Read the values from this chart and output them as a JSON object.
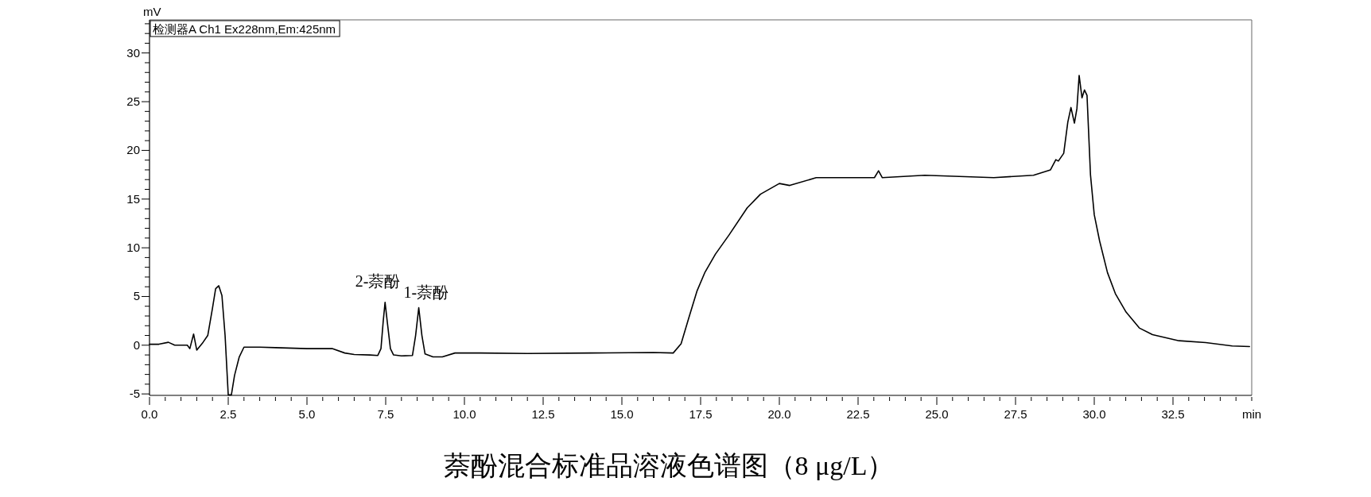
{
  "chart_data": {
    "type": "line",
    "title": "萘酚混合标准品溶液色谱图（8 μg/L）",
    "xlabel": "min",
    "ylabel": "mV",
    "annotations": [
      "检测器A Ch1 Ex228nm,Em:425nm",
      {
        "text": "2-萘酚",
        "x": 7.48,
        "y": 4.4
      },
      {
        "text": "1-萘酚",
        "x": 8.55,
        "y": 3.85
      }
    ],
    "xlim": [
      0,
      35
    ],
    "ylim": [
      -5.15,
      33.4
    ],
    "xticks": [
      {
        "value": 0,
        "label": "0.0"
      },
      {
        "value": 0.5,
        "label": null
      },
      {
        "value": 1,
        "label": null
      },
      {
        "value": 1.5,
        "label": null
      },
      {
        "value": 2,
        "label": null
      },
      {
        "value": 2.5,
        "label": "2.5"
      },
      {
        "value": 3,
        "label": null
      },
      {
        "value": 3.5,
        "label": null
      },
      {
        "value": 4,
        "label": null
      },
      {
        "value": 4.5,
        "label": null
      },
      {
        "value": 5,
        "label": "5.0"
      },
      {
        "value": 5.5,
        "label": null
      },
      {
        "value": 6,
        "label": null
      },
      {
        "value": 6.5,
        "label": null
      },
      {
        "value": 7,
        "label": null
      },
      {
        "value": 7.5,
        "label": "7.5"
      },
      {
        "value": 8,
        "label": null
      },
      {
        "value": 8.5,
        "label": null
      },
      {
        "value": 9,
        "label": null
      },
      {
        "value": 9.5,
        "label": null
      },
      {
        "value": 10,
        "label": "10.0"
      },
      {
        "value": 10.5,
        "label": null
      },
      {
        "value": 11,
        "label": null
      },
      {
        "value": 11.5,
        "label": null
      },
      {
        "value": 12,
        "label": null
      },
      {
        "value": 12.5,
        "label": "12.5"
      },
      {
        "value": 13,
        "label": null
      },
      {
        "value": 13.5,
        "label": null
      },
      {
        "value": 14,
        "label": null
      },
      {
        "value": 14.5,
        "label": null
      },
      {
        "value": 15,
        "label": "15.0"
      },
      {
        "value": 15.5,
        "label": null
      },
      {
        "value": 16,
        "label": null
      },
      {
        "value": 16.5,
        "label": null
      },
      {
        "value": 17,
        "label": null
      },
      {
        "value": 17.5,
        "label": "17.5"
      },
      {
        "value": 18,
        "label": null
      },
      {
        "value": 18.5,
        "label": null
      },
      {
        "value": 19,
        "label": null
      },
      {
        "value": 19.5,
        "label": null
      },
      {
        "value": 20,
        "label": "20.0"
      },
      {
        "value": 20.5,
        "label": null
      },
      {
        "value": 21,
        "label": null
      },
      {
        "value": 21.5,
        "label": null
      },
      {
        "value": 22,
        "label": null
      },
      {
        "value": 22.5,
        "label": "22.5"
      },
      {
        "value": 23,
        "label": null
      },
      {
        "value": 23.5,
        "label": null
      },
      {
        "value": 24,
        "label": null
      },
      {
        "value": 24.5,
        "label": null
      },
      {
        "value": 25,
        "label": "25.0"
      },
      {
        "value": 25.5,
        "label": null
      },
      {
        "value": 26,
        "label": null
      },
      {
        "value": 26.5,
        "label": null
      },
      {
        "value": 27,
        "label": null
      },
      {
        "value": 27.5,
        "label": "27.5"
      },
      {
        "value": 28,
        "label": null
      },
      {
        "value": 28.5,
        "label": null
      },
      {
        "value": 29,
        "label": null
      },
      {
        "value": 29.5,
        "label": null
      },
      {
        "value": 30,
        "label": "30.0"
      },
      {
        "value": 30.5,
        "label": null
      },
      {
        "value": 31,
        "label": null
      },
      {
        "value": 31.5,
        "label": null
      },
      {
        "value": 32,
        "label": null
      },
      {
        "value": 32.5,
        "label": "32.5"
      },
      {
        "value": 33,
        "label": null
      },
      {
        "value": 33.5,
        "label": null
      },
      {
        "value": 34,
        "label": null
      },
      {
        "value": 34.5,
        "label": null
      },
      {
        "value": 35,
        "label": null
      }
    ],
    "yticks": [
      -5,
      {
        "value": -4,
        "label": null
      },
      {
        "value": -3,
        "label": null
      },
      {
        "value": -2,
        "label": null
      },
      {
        "value": -1,
        "label": null
      },
      0,
      {
        "value": 1,
        "label": null
      },
      {
        "value": 2,
        "label": null
      },
      {
        "value": 3,
        "label": null
      },
      {
        "value": 4,
        "label": null
      },
      5,
      {
        "value": 6,
        "label": null
      },
      {
        "value": 7,
        "label": null
      },
      {
        "value": 8,
        "label": null
      },
      {
        "value": 9,
        "label": null
      },
      10,
      {
        "value": 11,
        "label": null
      },
      {
        "value": 12,
        "label": null
      },
      {
        "value": 13,
        "label": null
      },
      {
        "value": 14,
        "label": null
      },
      15,
      {
        "value": 16,
        "label": null
      },
      {
        "value": 17,
        "label": null
      },
      {
        "value": 18,
        "label": null
      },
      {
        "value": 19,
        "label": null
      },
      20,
      {
        "value": 21,
        "label": null
      },
      {
        "value": 22,
        "label": null
      },
      {
        "value": 23,
        "label": null
      },
      {
        "value": 24,
        "label": null
      },
      25,
      {
        "value": 26,
        "label": null
      },
      {
        "value": 27,
        "label": null
      },
      {
        "value": 28,
        "label": null
      },
      {
        "value": 29,
        "label": null
      },
      30,
      {
        "value": 31,
        "label": null
      },
      {
        "value": 32,
        "label": null
      },
      {
        "value": 33,
        "label": null
      }
    ],
    "series": [
      {
        "color": "#000000",
        "x": [
          0,
          0.3,
          0.6,
          0.8,
          1.2,
          1.28,
          1.4,
          1.5,
          1.7,
          1.85,
          2.0,
          2.1,
          2.2,
          2.3,
          2.4,
          2.5,
          2.6,
          2.7,
          2.85,
          3.0,
          3.5,
          4.0,
          5.0,
          5.8,
          6.2,
          6.5,
          7.0,
          7.25,
          7.35,
          7.42,
          7.48,
          7.55,
          7.65,
          7.75,
          8.0,
          8.35,
          8.45,
          8.55,
          8.65,
          8.75,
          9.0,
          9.3,
          9.7,
          10.5,
          12,
          14,
          16,
          16.63,
          16.88,
          17.13,
          17.39,
          17.64,
          17.97,
          18.4,
          18.98,
          19.4,
          20.0,
          20.33,
          21.17,
          23.02,
          23.15,
          23.27,
          24.62,
          26.81,
          28.07,
          28.61,
          28.78,
          28.86,
          29.03,
          29.16,
          29.26,
          29.37,
          29.45,
          29.52,
          29.61,
          29.69,
          29.77,
          29.88,
          30.0,
          30.17,
          30.42,
          30.67,
          31.01,
          31.43,
          31.85,
          32.69,
          33.54,
          34.38,
          34.93
        ],
        "values": [
          0.1,
          0.1,
          0.3,
          0.0,
          0.0,
          -0.35,
          1.15,
          -0.5,
          0.3,
          1.0,
          3.8,
          5.8,
          6.1,
          5.1,
          1.0,
          -5.1,
          -5.1,
          -3.1,
          -1.2,
          -0.2,
          -0.2,
          -0.25,
          -0.35,
          -0.35,
          -0.8,
          -0.95,
          -1.0,
          -1.05,
          -0.35,
          2.4,
          4.4,
          2.4,
          -0.35,
          -1.0,
          -1.1,
          -1.05,
          1.0,
          3.85,
          1.0,
          -0.9,
          -1.2,
          -1.2,
          -0.8,
          -0.8,
          -0.85,
          -0.8,
          -0.75,
          -0.8,
          0.15,
          2.85,
          5.6,
          7.5,
          9.35,
          11.3,
          14.1,
          15.5,
          16.6,
          16.4,
          17.2,
          17.2,
          17.9,
          17.2,
          17.45,
          17.2,
          17.45,
          18.0,
          19.05,
          18.9,
          19.7,
          22.9,
          24.4,
          22.8,
          24.3,
          27.7,
          25.4,
          26.2,
          25.65,
          17.5,
          13.4,
          10.7,
          7.45,
          5.3,
          3.4,
          1.77,
          1.08,
          0.46,
          0.27,
          -0.08,
          -0.14
        ]
      }
    ]
  }
}
